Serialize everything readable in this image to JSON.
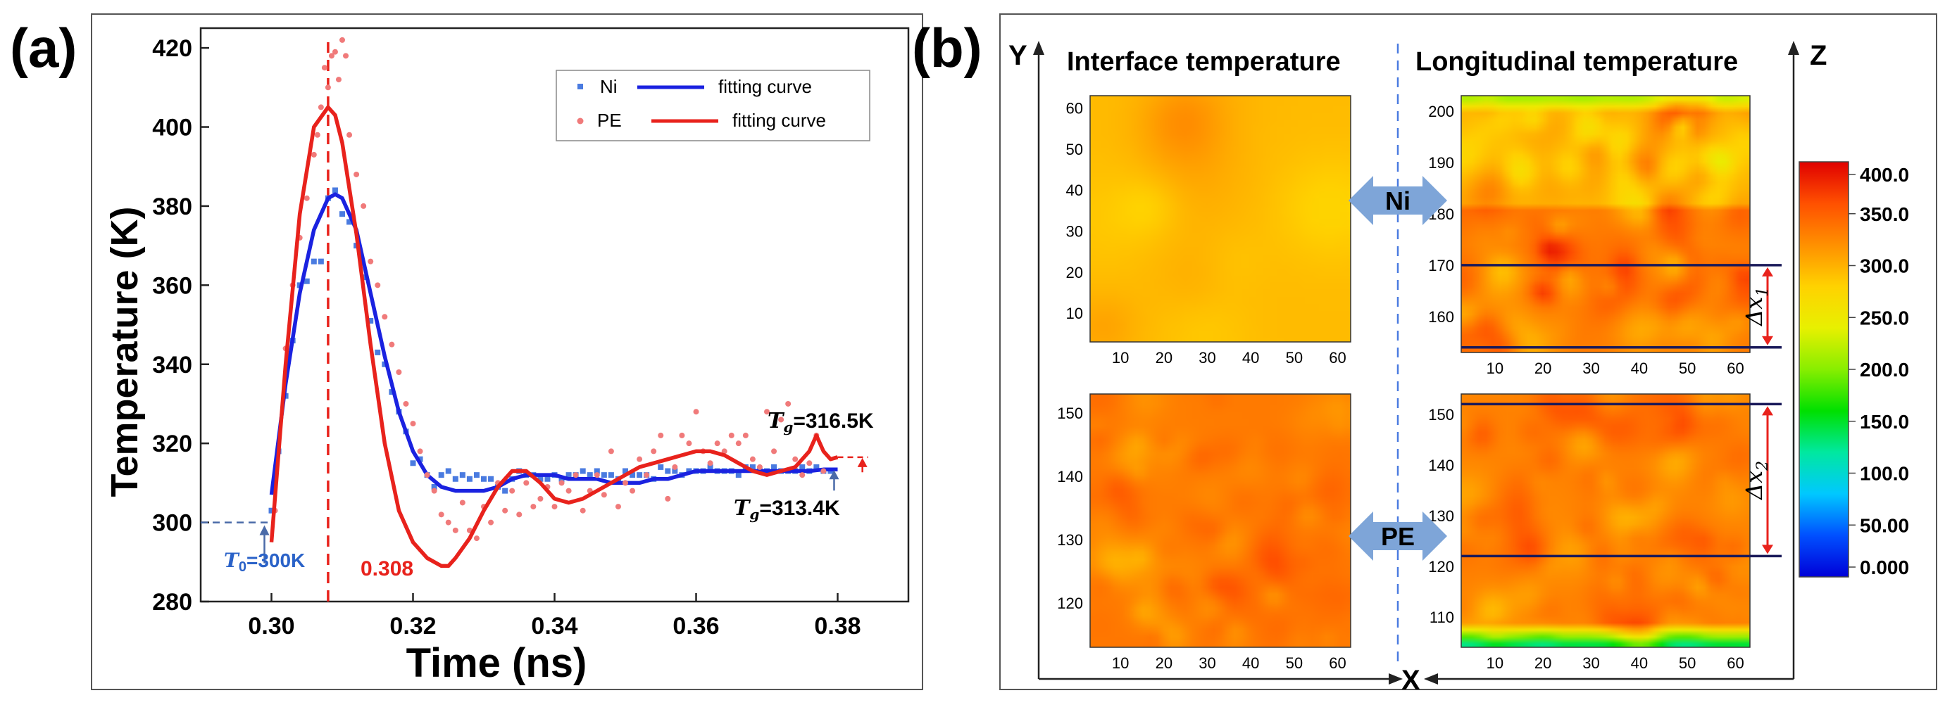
{
  "chart_data": [
    {
      "type": "scatter",
      "panel_label": "(a)",
      "xlabel": "Time (ns)",
      "ylabel": "Temperature (K)",
      "xlim": [
        0.29,
        0.39
      ],
      "ylim": [
        280,
        425
      ],
      "xticks": [
        0.3,
        0.32,
        0.34,
        0.36,
        0.38
      ],
      "xtick_labels": [
        "0.30",
        "0.32",
        "0.34",
        "0.36",
        "0.38"
      ],
      "yticks": [
        280,
        300,
        320,
        340,
        360,
        380,
        400,
        420
      ],
      "ytick_labels": [
        "280",
        "300",
        "320",
        "340",
        "360",
        "380",
        "400",
        "420"
      ],
      "legend": [
        {
          "label": "Ni",
          "kind": "marker"
        },
        {
          "label": "fitting curve",
          "kind": "line"
        },
        {
          "label": "PE",
          "kind": "marker"
        },
        {
          "label": "fitting curve",
          "kind": "line"
        }
      ],
      "series": [
        {
          "name": "Ni",
          "kind": "scatter",
          "color": "#4a7be0",
          "x": [
            0.3,
            0.301,
            0.302,
            0.303,
            0.304,
            0.305,
            0.306,
            0.307,
            0.308,
            0.309,
            0.31,
            0.311,
            0.312,
            0.313,
            0.314,
            0.315,
            0.316,
            0.317,
            0.318,
            0.319,
            0.32,
            0.321,
            0.322,
            0.323,
            0.324,
            0.325,
            0.326,
            0.327,
            0.328,
            0.329,
            0.33,
            0.331,
            0.332,
            0.333,
            0.334,
            0.335,
            0.336,
            0.337,
            0.338,
            0.339,
            0.34,
            0.341,
            0.342,
            0.343,
            0.344,
            0.345,
            0.346,
            0.347,
            0.348,
            0.349,
            0.35,
            0.351,
            0.352,
            0.353,
            0.354,
            0.355,
            0.356,
            0.357,
            0.358,
            0.359,
            0.36,
            0.361,
            0.362,
            0.363,
            0.364,
            0.365,
            0.366,
            0.367,
            0.368,
            0.369,
            0.37,
            0.371,
            0.372,
            0.373,
            0.374,
            0.375,
            0.376,
            0.377,
            0.378,
            0.379
          ],
          "y": [
            303,
            318,
            332,
            346,
            360,
            361,
            366,
            366,
            382,
            384,
            378,
            376,
            370,
            362,
            351,
            343,
            340,
            333,
            328,
            323,
            315,
            316,
            312,
            309,
            312,
            313,
            311,
            312,
            311,
            312,
            311,
            311,
            309,
            308,
            311,
            313,
            312,
            312,
            311,
            311,
            312,
            311,
            312,
            312,
            313,
            312,
            313,
            312,
            312,
            311,
            313,
            312,
            312,
            312,
            311,
            314,
            313,
            313,
            312,
            313,
            313,
            313,
            314,
            313,
            313,
            313,
            312,
            314,
            314,
            313,
            313,
            314,
            313,
            313,
            313,
            314,
            313,
            314,
            313,
            313
          ]
        },
        {
          "name": "Ni fitting curve",
          "kind": "line",
          "color": "#1a22e0",
          "x": [
            0.3,
            0.302,
            0.304,
            0.306,
            0.308,
            0.309,
            0.31,
            0.312,
            0.314,
            0.316,
            0.318,
            0.32,
            0.322,
            0.324,
            0.326,
            0.328,
            0.33,
            0.332,
            0.334,
            0.336,
            0.338,
            0.34,
            0.342,
            0.344,
            0.346,
            0.348,
            0.35,
            0.352,
            0.354,
            0.356,
            0.358,
            0.36,
            0.362,
            0.364,
            0.366,
            0.368,
            0.37,
            0.372,
            0.374,
            0.376,
            0.378,
            0.38
          ],
          "y": [
            307,
            335,
            358,
            374,
            382,
            383,
            382,
            374,
            358,
            342,
            328,
            318,
            312,
            309,
            308,
            308,
            308,
            309,
            311,
            312,
            312,
            312,
            311,
            311,
            311,
            310,
            310,
            310,
            311,
            311,
            312,
            313,
            313,
            313,
            313,
            313,
            313,
            313,
            313,
            313,
            313.4,
            313.4
          ]
        },
        {
          "name": "PE",
          "kind": "scatter",
          "color": "#f07a7a",
          "x": [
            0.3005,
            0.302,
            0.303,
            0.304,
            0.305,
            0.306,
            0.3065,
            0.307,
            0.3075,
            0.308,
            0.3085,
            0.309,
            0.3095,
            0.31,
            0.3105,
            0.311,
            0.312,
            0.313,
            0.314,
            0.315,
            0.316,
            0.317,
            0.318,
            0.319,
            0.32,
            0.321,
            0.322,
            0.323,
            0.324,
            0.325,
            0.326,
            0.327,
            0.328,
            0.329,
            0.33,
            0.331,
            0.332,
            0.333,
            0.334,
            0.335,
            0.336,
            0.337,
            0.338,
            0.339,
            0.34,
            0.341,
            0.342,
            0.343,
            0.344,
            0.345,
            0.346,
            0.347,
            0.348,
            0.349,
            0.35,
            0.351,
            0.352,
            0.353,
            0.354,
            0.355,
            0.356,
            0.357,
            0.358,
            0.359,
            0.36,
            0.361,
            0.362,
            0.363,
            0.364,
            0.365,
            0.366,
            0.367,
            0.368,
            0.369,
            0.37,
            0.371,
            0.372,
            0.373,
            0.374,
            0.375,
            0.376,
            0.377,
            0.378
          ],
          "y": [
            303,
            344,
            360,
            372,
            382,
            393,
            398,
            405,
            415,
            410,
            418,
            419,
            412,
            422,
            418,
            398,
            388,
            380,
            366,
            360,
            352,
            345,
            338,
            330,
            325,
            318,
            312,
            308,
            302,
            300,
            298,
            305,
            298,
            296,
            304,
            300,
            310,
            303,
            308,
            302,
            310,
            304,
            306,
            309,
            304,
            310,
            308,
            312,
            303,
            308,
            312,
            307,
            318,
            304,
            310,
            308,
            316,
            312,
            318,
            322,
            306,
            314,
            322,
            320,
            328,
            318,
            315,
            320,
            318,
            322,
            320,
            322,
            316,
            314,
            328,
            318,
            326,
            330,
            316,
            312,
            315,
            322,
            313
          ]
        },
        {
          "name": "PE fitting curve",
          "kind": "line",
          "color": "#e8221c",
          "x": [
            0.3,
            0.302,
            0.304,
            0.306,
            0.308,
            0.309,
            0.31,
            0.312,
            0.314,
            0.316,
            0.318,
            0.32,
            0.322,
            0.324,
            0.325,
            0.326,
            0.328,
            0.33,
            0.332,
            0.334,
            0.336,
            0.338,
            0.34,
            0.342,
            0.344,
            0.346,
            0.348,
            0.35,
            0.352,
            0.354,
            0.356,
            0.358,
            0.36,
            0.362,
            0.364,
            0.366,
            0.368,
            0.37,
            0.372,
            0.374,
            0.376,
            0.377,
            0.378,
            0.379,
            0.38
          ],
          "y": [
            295,
            340,
            378,
            400,
            405,
            403,
            396,
            373,
            345,
            320,
            303,
            295,
            291,
            289,
            289,
            291,
            296,
            303,
            309,
            313,
            313,
            310,
            306,
            305,
            306,
            308,
            310,
            312,
            314,
            315,
            316,
            317,
            318,
            318,
            317,
            315,
            313,
            312,
            313,
            314,
            318,
            322,
            318,
            316,
            316.5
          ]
        }
      ],
      "annotations": {
        "t0": {
          "label": "T",
          "sub": "0",
          "value": "=300K",
          "x": 0.3,
          "y": 300
        },
        "peak": {
          "label": "0.308",
          "x": 0.308
        },
        "tg_pe": {
          "label": "T",
          "sub": "g",
          "value": "=316.5K",
          "y": 316.5
        },
        "tg_ni": {
          "label": "T",
          "sub": "g",
          "value": "=313.4K",
          "y": 313.4
        }
      }
    },
    {
      "type": "heatmap",
      "panel_label": "(b)",
      "axis_y": "Y",
      "axis_x": "X",
      "axis_z": "Z",
      "left_title": "Interface temperature",
      "right_title": "Longitudinal temperature",
      "materials": [
        "Ni",
        "PE"
      ],
      "panels": [
        {
          "name": "ni-interface",
          "xticks": [
            10,
            20,
            30,
            40,
            50,
            60
          ],
          "yticks": [
            10,
            20,
            30,
            40,
            50,
            60
          ],
          "xrange": [
            3,
            63
          ],
          "yrange": [
            3,
            63
          ],
          "base": 300,
          "spread": 22,
          "seed": 7,
          "blob": 14,
          "levels": [
            290,
            305,
            320
          ]
        },
        {
          "name": "ni-longitudinal",
          "xticks": [
            10,
            20,
            30,
            40,
            50,
            60
          ],
          "yticks": [
            160,
            170,
            180,
            190,
            200
          ],
          "xrange": [
            3,
            63
          ],
          "yrange": [
            153,
            203
          ],
          "base": 300,
          "spread": 55,
          "seed": 13,
          "blob": 5,
          "levels": [
            230,
            265,
            300,
            335
          ],
          "delta": {
            "label": "Δx",
            "sub": "1",
            "y_top": 170,
            "y_bottom": 154
          }
        },
        {
          "name": "pe-interface",
          "xticks": [
            10,
            20,
            30,
            40,
            50,
            60
          ],
          "yticks": [
            120,
            130,
            140,
            150
          ],
          "xrange": [
            3,
            63
          ],
          "yrange": [
            113,
            153
          ],
          "base": 330,
          "spread": 30,
          "seed": 21,
          "blob": 5,
          "levels": [
            300,
            330,
            355
          ]
        },
        {
          "name": "pe-longitudinal",
          "xticks": [
            10,
            20,
            30,
            40,
            50,
            60
          ],
          "yticks": [
            110,
            120,
            130,
            140,
            150
          ],
          "xrange": [
            3,
            63
          ],
          "yrange": [
            104,
            154
          ],
          "base": 335,
          "spread": 40,
          "seed": 29,
          "blob": 5,
          "levels": [
            290,
            325,
            360
          ],
          "delta": {
            "label": "Δx",
            "sub": "2",
            "y_top": 152,
            "y_bottom": 122
          }
        }
      ],
      "colorbar": {
        "min": 0,
        "max": 400,
        "tick_values": [
          400,
          350,
          300,
          250,
          200,
          150,
          100,
          50,
          0
        ],
        "tick_labels": [
          "400.0",
          "350.0",
          "300.0",
          "250.0",
          "200.0",
          "150.0",
          "100.0",
          "50.00",
          "0.000"
        ],
        "stops": [
          "#0000d8",
          "#0050ff",
          "#00c8ff",
          "#00e8a0",
          "#00e000",
          "#88ee00",
          "#e8f000",
          "#ffd200",
          "#ff9000",
          "#ff5000",
          "#e00000"
        ]
      }
    }
  ]
}
